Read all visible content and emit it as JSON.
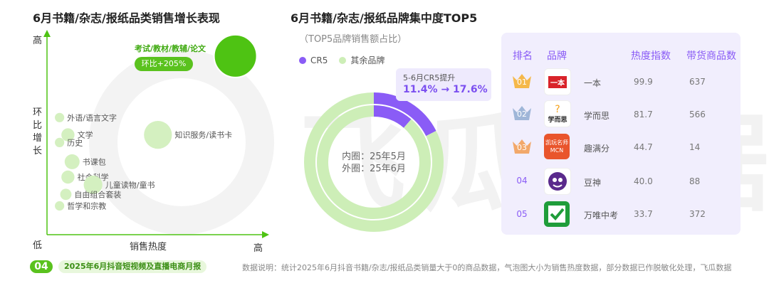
{
  "watermark": "飞瓜数据",
  "left": {
    "title": "6月书籍/杂志/报纸品类销售增长表现",
    "y_label_high": "高",
    "y_label_axis": "环比增长",
    "y_label_low": "低",
    "x_label_axis": "销售热度",
    "x_label_high": "高",
    "highlight_label": "考试/教材/教辅/论文",
    "highlight_badge": "环比+205%"
  },
  "chart_data": [
    {
      "type": "scatter",
      "title": "6月书籍/杂志/报纸品类销售增长表现",
      "xlabel": "销售热度",
      "ylabel": "环比增长",
      "points": [
        {
          "name": "考试/教材/教辅/论文",
          "x": 9.0,
          "y": 9.3,
          "size": 10,
          "highlight": true
        },
        {
          "name": "外语/语言文字",
          "x": 0.6,
          "y": 6.1,
          "size": 1
        },
        {
          "name": "文学",
          "x": 1.0,
          "y": 5.2,
          "size": 2
        },
        {
          "name": "历史",
          "x": 0.6,
          "y": 4.8,
          "size": 1
        },
        {
          "name": "知识服务/读书卡",
          "x": 5.3,
          "y": 5.2,
          "size": 6
        },
        {
          "name": "书课包",
          "x": 1.2,
          "y": 3.8,
          "size": 2.5
        },
        {
          "name": "社会科学",
          "x": 1.0,
          "y": 3.0,
          "size": 2
        },
        {
          "name": "儿童读物/童书",
          "x": 2.2,
          "y": 2.6,
          "size": 3.5
        },
        {
          "name": "自由组合套装",
          "x": 0.9,
          "y": 2.1,
          "size": 1.5
        },
        {
          "name": "哲学和宗教",
          "x": 0.6,
          "y": 1.5,
          "size": 1
        }
      ]
    },
    {
      "type": "pie",
      "title": "6月书籍/杂志/报纸品牌集中度TOP5",
      "subtitle": "（TOP5品牌销售额占比）",
      "legend": [
        "CR5",
        "其余品牌"
      ],
      "series": [
        {
          "name": "内圈：25年5月",
          "values": [
            11.4,
            88.6
          ]
        },
        {
          "name": "外圈：25年6月",
          "values": [
            17.6,
            82.4
          ]
        }
      ],
      "annotation_label": "5-6月CR5提升",
      "annotation_value": "11.4% → 17.6%"
    }
  ],
  "donut": {
    "center_inner": "内圈：25年5月",
    "center_outer": "外圈：25年6月",
    "callout_label": "5-6月CR5提升",
    "callout_value": "11.4% → 17.6%"
  },
  "colors": {
    "green": "#4ec313",
    "green_light": "#cdeeb7",
    "purple": "#8a5cf6",
    "panel": "#f1eefd"
  },
  "table": {
    "headers": [
      "排名",
      "品牌",
      "热度指数",
      "带货商品数"
    ],
    "rows": [
      {
        "rank": "01",
        "brand": "一本",
        "heat": "99.9",
        "count": "637",
        "logo_text": "一本"
      },
      {
        "rank": "02",
        "brand": "学而思",
        "heat": "81.7",
        "count": "566",
        "logo_text": "学而思"
      },
      {
        "rank": "03",
        "brand": "趣满分",
        "heat": "44.7",
        "count": "14",
        "logo_text": "凯玩名师 MCN"
      },
      {
        "rank": "04",
        "brand": "豆神",
        "heat": "40.0",
        "count": "88",
        "logo_text": ""
      },
      {
        "rank": "05",
        "brand": "万唯中考",
        "heat": "33.7",
        "count": "372",
        "logo_text": ""
      }
    ]
  },
  "footer": {
    "page_num": "04",
    "report": "2025年6月抖音短视频及直播电商月报",
    "note": "数据说明：统计2025年6月抖音书籍/杂志/报纸品类销量大于0的商品数据，气泡图大小为销售热度数据，部分数据已作脱敏化处理，飞瓜数据"
  }
}
